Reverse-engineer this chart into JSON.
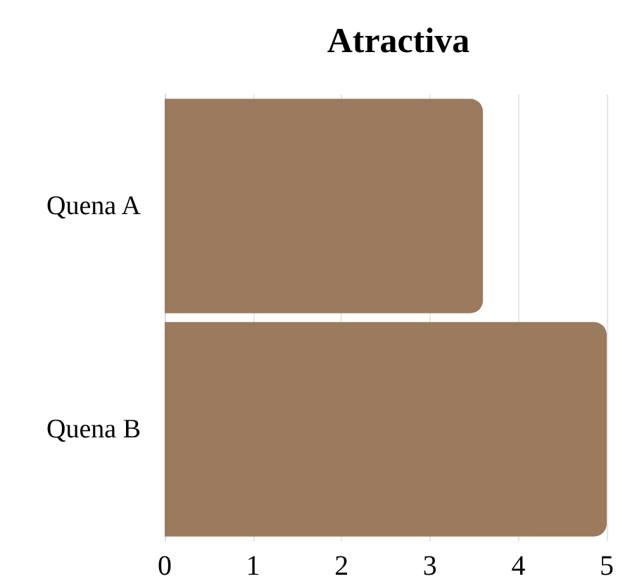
{
  "chart_data": {
    "type": "bar",
    "title": "Atractiva",
    "orientation": "horizontal",
    "categories": [
      "Quena A",
      "Quena B"
    ],
    "values": [
      3.6,
      5
    ],
    "color": "#9c7a5e",
    "xlim": [
      0,
      5
    ],
    "xticks": [
      0,
      1,
      2,
      3,
      4,
      5
    ],
    "grid": "x"
  }
}
